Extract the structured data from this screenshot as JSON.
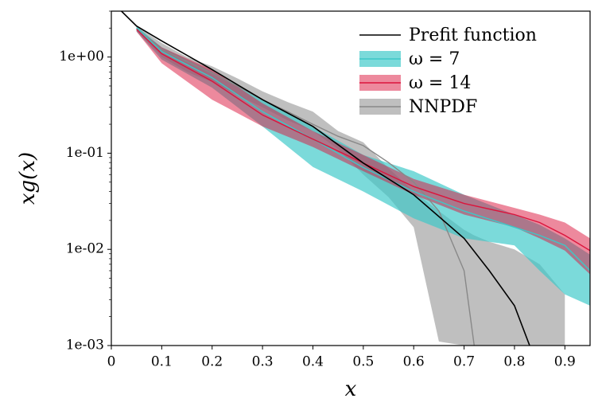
{
  "chart_data": {
    "type": "line",
    "xlabel": "x",
    "ylabel": "xg(x)",
    "log_y": true,
    "legend": "upper right",
    "xlim": [
      0,
      0.95
    ],
    "ylim": [
      0.001,
      3
    ],
    "xticks": [
      0,
      0.1,
      0.2,
      0.3,
      0.4,
      0.5,
      0.6,
      0.7,
      0.8,
      0.9
    ],
    "yticks": [
      {
        "value": 0.001,
        "label": "1e-03"
      },
      {
        "value": 0.01,
        "label": "1e-02"
      },
      {
        "value": 0.1,
        "label": "1e-01"
      },
      {
        "value": 1,
        "label": "1e+00"
      }
    ],
    "series": [
      {
        "name": "Prefit function",
        "color": "#000000",
        "x": [
          0.02,
          0.05,
          0.1,
          0.2,
          0.3,
          0.4,
          0.5,
          0.6,
          0.7,
          0.75,
          0.8,
          0.83
        ],
        "values": [
          3.0,
          2.1,
          1.47,
          0.74,
          0.36,
          0.19,
          0.079,
          0.037,
          0.013,
          0.006,
          0.0026,
          0.001
        ]
      },
      {
        "name": "ω = 7",
        "color": "#3cc8c8",
        "x": [
          0.05,
          0.1,
          0.2,
          0.3,
          0.4,
          0.5,
          0.6,
          0.7,
          0.8,
          0.85,
          0.9,
          0.95
        ],
        "values": [
          2.0,
          1.14,
          0.61,
          0.27,
          0.14,
          0.071,
          0.04,
          0.025,
          0.017,
          0.014,
          0.011,
          0.006
        ],
        "lower": [
          1.84,
          0.94,
          0.48,
          0.19,
          0.072,
          0.04,
          0.021,
          0.013,
          0.011,
          0.006,
          0.0034,
          0.0026
        ],
        "upper": [
          2.1,
          1.26,
          0.71,
          0.36,
          0.19,
          0.096,
          0.065,
          0.037,
          0.023,
          0.018,
          0.013,
          0.0088
        ]
      },
      {
        "name": "ω = 14",
        "color": "#dc143c",
        "x": [
          0.05,
          0.1,
          0.2,
          0.3,
          0.4,
          0.5,
          0.6,
          0.7,
          0.8,
          0.85,
          0.9,
          0.95
        ],
        "values": [
          1.95,
          1.08,
          0.56,
          0.25,
          0.14,
          0.079,
          0.045,
          0.03,
          0.023,
          0.019,
          0.014,
          0.0097
        ],
        "lower": [
          1.84,
          0.86,
          0.36,
          0.19,
          0.116,
          0.065,
          0.037,
          0.023,
          0.017,
          0.013,
          0.0097,
          0.0055
        ],
        "upper": [
          2.0,
          1.26,
          0.74,
          0.33,
          0.17,
          0.096,
          0.054,
          0.037,
          0.027,
          0.023,
          0.019,
          0.013
        ]
      },
      {
        "name": "NNPDF",
        "color": "#888888",
        "x": [
          0.05,
          0.1,
          0.15,
          0.2,
          0.25,
          0.3,
          0.35,
          0.4,
          0.45,
          0.5,
          0.55,
          0.6,
          0.65,
          0.7,
          0.72,
          0.75,
          0.8,
          0.85,
          0.9
        ],
        "values": [
          2.0,
          1.2,
          0.9,
          0.68,
          0.5,
          0.36,
          0.27,
          0.2,
          0.15,
          0.12,
          0.08,
          0.05,
          0.025,
          0.006,
          0.001,
          null,
          null,
          null,
          null
        ],
        "lower": [
          1.9,
          1.0,
          0.7,
          0.55,
          0.4,
          0.3,
          0.22,
          0.17,
          0.11,
          0.06,
          0.035,
          0.017,
          0.0011,
          0.001,
          0.001,
          0.001,
          0.001,
          0.001,
          0.001
        ],
        "upper": [
          2.1,
          1.4,
          1.0,
          0.8,
          0.6,
          0.44,
          0.34,
          0.27,
          0.17,
          0.13,
          0.07,
          0.04,
          0.025,
          0.016,
          0.014,
          0.012,
          0.01,
          0.007,
          0.0034
        ]
      }
    ]
  }
}
